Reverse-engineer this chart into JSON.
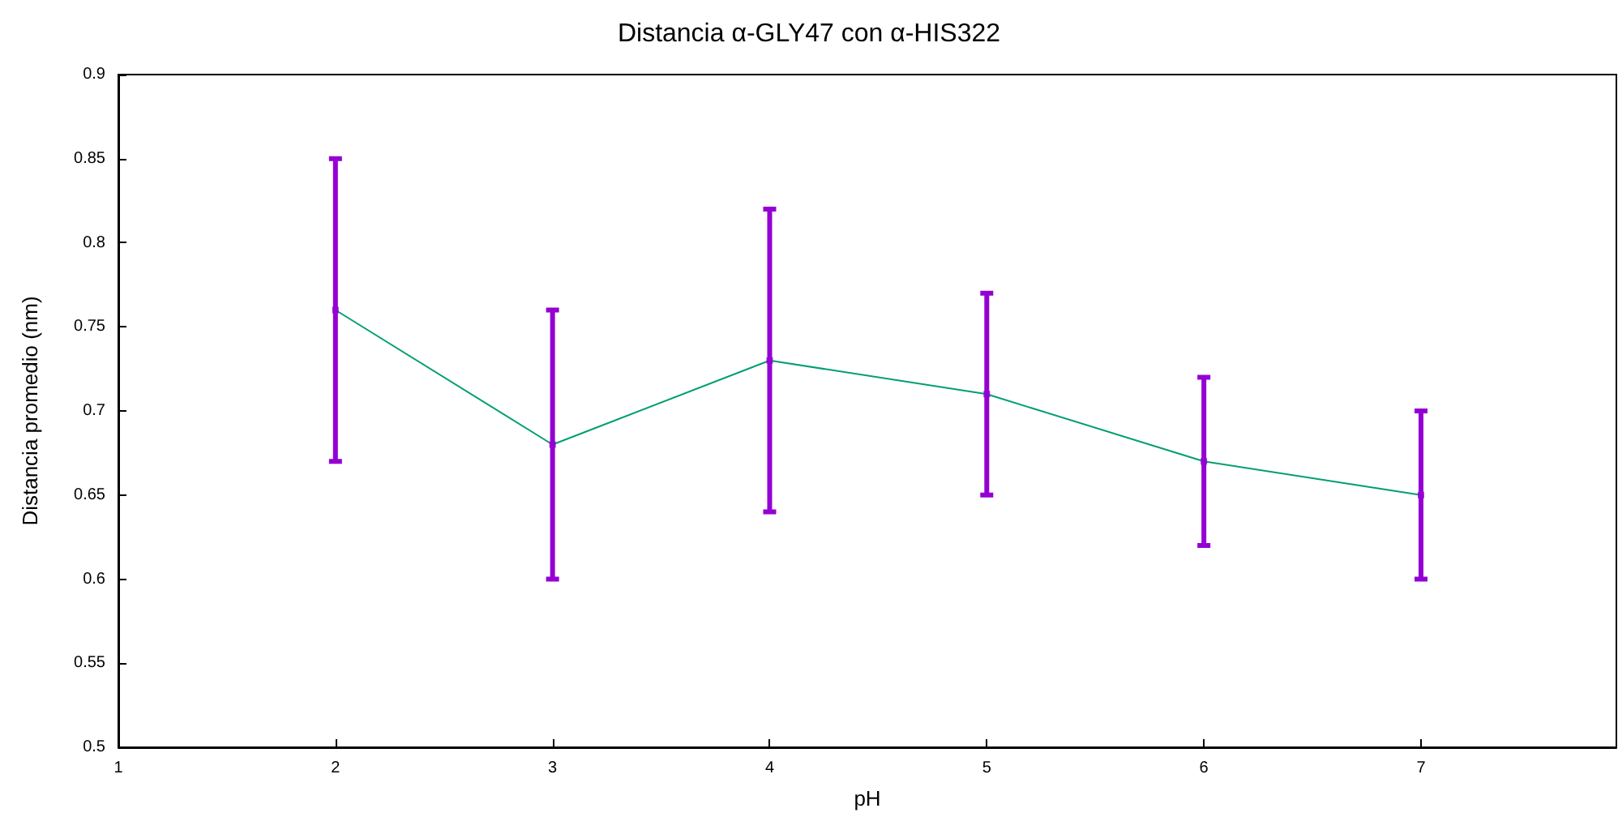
{
  "chart_data": {
    "type": "line",
    "title": "Distancia α-GLY47 con α-HIS322",
    "xlabel": "pH",
    "ylabel": "Distancia promedio (nm)",
    "x": [
      2,
      3,
      4,
      5,
      6,
      7
    ],
    "series": [
      {
        "type": "scatter",
        "color": "#9400d3",
        "values": [
          0.76,
          0.68,
          0.73,
          0.71,
          0.67,
          0.65
        ],
        "errors": [
          0.09,
          0.08,
          0.09,
          0.06,
          0.05,
          0.05
        ],
        "marker": "square"
      },
      {
        "type": "line",
        "color": "#009e73",
        "values": [
          0.76,
          0.68,
          0.73,
          0.71,
          0.67,
          0.65
        ],
        "marker": "none",
        "line_style": "solid"
      }
    ],
    "xlim": [
      1,
      7.9
    ],
    "xticks": [
      1,
      2,
      3,
      4,
      5,
      6,
      7
    ],
    "ylim": [
      0.5,
      0.9
    ],
    "yticks": [
      0.5,
      0.55,
      0.6,
      0.65,
      0.7,
      0.75,
      0.8,
      0.85,
      0.9
    ],
    "grid": false
  }
}
